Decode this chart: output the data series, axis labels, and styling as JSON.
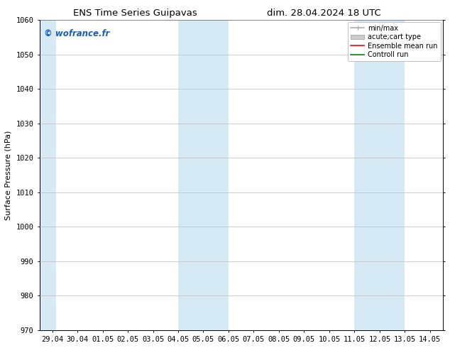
{
  "title_left": "ENS Time Series Guipavas",
  "title_right": "dim. 28.04.2024 18 UTC",
  "ylabel": "Surface Pressure (hPa)",
  "ylim": [
    970,
    1060
  ],
  "yticks": [
    970,
    980,
    990,
    1000,
    1010,
    1020,
    1030,
    1040,
    1050,
    1060
  ],
  "xlim_start": -0.5,
  "xlim_end": 15.5,
  "xtick_labels": [
    "29.04",
    "30.04",
    "01.05",
    "02.05",
    "03.05",
    "04.05",
    "05.05",
    "06.05",
    "07.05",
    "08.05",
    "09.05",
    "10.05",
    "11.05",
    "12.05",
    "13.05",
    "14.05"
  ],
  "xtick_positions": [
    0,
    1,
    2,
    3,
    4,
    5,
    6,
    7,
    8,
    9,
    10,
    11,
    12,
    13,
    14,
    15
  ],
  "shaded_bands": [
    {
      "xmin": -0.5,
      "xmax": 0.15
    },
    {
      "xmin": 5.0,
      "xmax": 7.0
    },
    {
      "xmin": 12.0,
      "xmax": 14.0
    }
  ],
  "shade_color": "#d6eaf5",
  "watermark_text": "© wofrance.fr",
  "watermark_color": "#1a5fb4",
  "legend_items": [
    {
      "label": "min/max",
      "color": "#aaaaaa",
      "lw": 1.2
    },
    {
      "label": "acute;cart type",
      "color": "#cccccc",
      "lw": 5
    },
    {
      "label": "Ensemble mean run",
      "color": "red",
      "lw": 1.2
    },
    {
      "label": "Controll run",
      "color": "green",
      "lw": 1.2
    }
  ],
  "bg_color": "white",
  "grid_color": "#bbbbbb",
  "title_fontsize": 9.5,
  "axis_label_fontsize": 8,
  "tick_fontsize": 7.5,
  "legend_fontsize": 7
}
